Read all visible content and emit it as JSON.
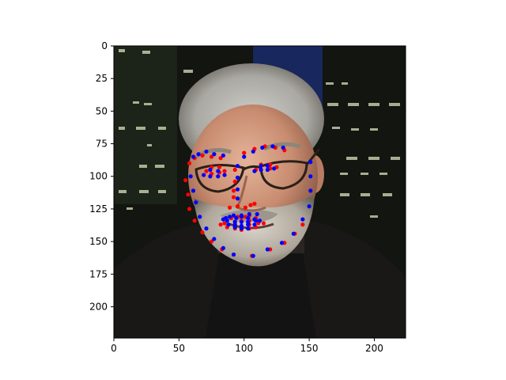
{
  "chart_data": {
    "type": "scatter",
    "title": "",
    "xlabel": "",
    "ylabel": "",
    "xlim": [
      0,
      224
    ],
    "ylim": [
      224,
      0
    ],
    "y_inverted": true,
    "grid": false,
    "legend": "none",
    "xticks": [
      0,
      50,
      100,
      150,
      200
    ],
    "yticks": [
      0,
      25,
      50,
      75,
      100,
      125,
      150,
      175,
      200
    ],
    "background_image": "photo of a bald, gray-haired man with a beard wearing glasses against a dark city-night background",
    "series": [
      {
        "color": "#ff0000",
        "points": [
          [
            55,
            103
          ],
          [
            57,
            114
          ],
          [
            58,
            125
          ],
          [
            62,
            134
          ],
          [
            68,
            143
          ],
          [
            75,
            150
          ],
          [
            83,
            156
          ],
          [
            92,
            160
          ],
          [
            106,
            161
          ],
          [
            120,
            156
          ],
          [
            131,
            151
          ],
          [
            139,
            144
          ],
          [
            145,
            137
          ],
          [
            58,
            90
          ],
          [
            62,
            86
          ],
          [
            68,
            84
          ],
          [
            75,
            85
          ],
          [
            82,
            86
          ],
          [
            100,
            82
          ],
          [
            108,
            79
          ],
          [
            116,
            77
          ],
          [
            124,
            78
          ],
          [
            131,
            80
          ],
          [
            93,
            95
          ],
          [
            93,
            104
          ],
          [
            92,
            111
          ],
          [
            92,
            116
          ],
          [
            89,
            124
          ],
          [
            95,
            123
          ],
          [
            101,
            124
          ],
          [
            105,
            122
          ],
          [
            108,
            121
          ],
          [
            71,
            96
          ],
          [
            75,
            93
          ],
          [
            81,
            93
          ],
          [
            85,
            96
          ],
          [
            81,
            97
          ],
          [
            75,
            98
          ],
          [
            109,
            95
          ],
          [
            113,
            91
          ],
          [
            120,
            91
          ],
          [
            125,
            93
          ],
          [
            120,
            94
          ],
          [
            113,
            95
          ],
          [
            82,
            137
          ],
          [
            90,
            132
          ],
          [
            95,
            131
          ],
          [
            101,
            131
          ],
          [
            104,
            130
          ],
          [
            109,
            132
          ],
          [
            115,
            136
          ],
          [
            109,
            139
          ],
          [
            104,
            140
          ],
          [
            98,
            141
          ],
          [
            93,
            140
          ],
          [
            87,
            139
          ],
          [
            85,
            136
          ],
          [
            93,
            135
          ],
          [
            98,
            134
          ],
          [
            104,
            134
          ],
          [
            111,
            136
          ],
          [
            104,
            137
          ],
          [
            98,
            138
          ],
          [
            93,
            137
          ]
        ]
      },
      {
        "color": "#0000ff",
        "points": [
          [
            59,
            100
          ],
          [
            61,
            111
          ],
          [
            63,
            120
          ],
          [
            66,
            131
          ],
          [
            71,
            140
          ],
          [
            77,
            148
          ],
          [
            84,
            155
          ],
          [
            92,
            160
          ],
          [
            107,
            161
          ],
          [
            118,
            156
          ],
          [
            129,
            151
          ],
          [
            138,
            144
          ],
          [
            145,
            133
          ],
          [
            150,
            123
          ],
          [
            151,
            111
          ],
          [
            151,
            100
          ],
          [
            151,
            89
          ],
          [
            61,
            85
          ],
          [
            65,
            83
          ],
          [
            71,
            81
          ],
          [
            77,
            83
          ],
          [
            84,
            84
          ],
          [
            100,
            85
          ],
          [
            107,
            81
          ],
          [
            114,
            78
          ],
          [
            122,
            77
          ],
          [
            130,
            78
          ],
          [
            95,
            92
          ],
          [
            95,
            101
          ],
          [
            95,
            110
          ],
          [
            95,
            117
          ],
          [
            86,
            132
          ],
          [
            92,
            130
          ],
          [
            98,
            130
          ],
          [
            104,
            129
          ],
          [
            110,
            129
          ],
          [
            69,
            99
          ],
          [
            74,
            95
          ],
          [
            80,
            96
          ],
          [
            85,
            99
          ],
          [
            80,
            100
          ],
          [
            74,
            100
          ],
          [
            108,
            96
          ],
          [
            113,
            92
          ],
          [
            118,
            92
          ],
          [
            123,
            94
          ],
          [
            118,
            95
          ],
          [
            113,
            95
          ],
          [
            84,
            133
          ],
          [
            89,
            131
          ],
          [
            94,
            132
          ],
          [
            98,
            131
          ],
          [
            103,
            132
          ],
          [
            108,
            133
          ],
          [
            112,
            134
          ],
          [
            108,
            137
          ],
          [
            103,
            140
          ],
          [
            98,
            140
          ],
          [
            93,
            139
          ],
          [
            88,
            137
          ],
          [
            87,
            134
          ],
          [
            93,
            135
          ],
          [
            98,
            135
          ],
          [
            103,
            135
          ],
          [
            109,
            134
          ],
          [
            103,
            137
          ],
          [
            98,
            138
          ],
          [
            93,
            137
          ]
        ]
      }
    ]
  }
}
